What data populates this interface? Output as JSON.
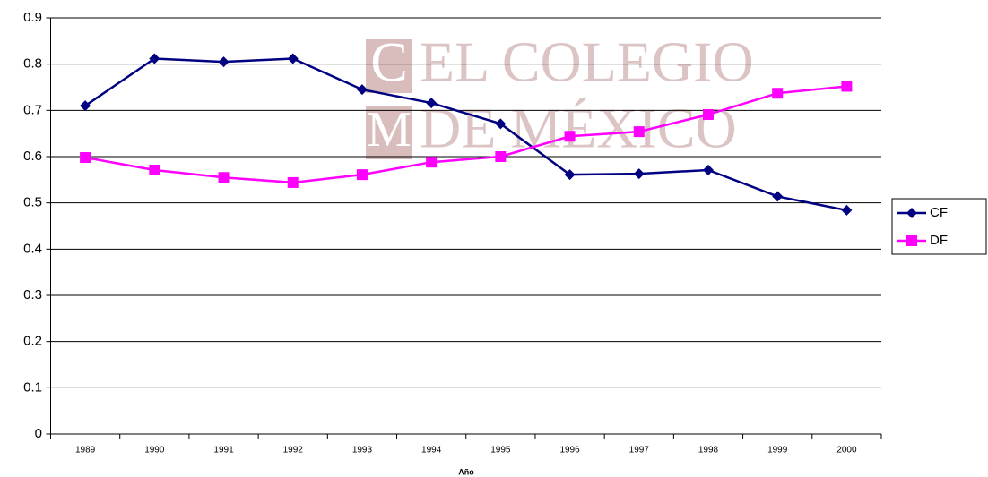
{
  "chart_data": {
    "type": "line",
    "watermark": [
      "C",
      "M",
      "EL COLEGIO",
      "DE MÉXICO"
    ],
    "xlabel": "Año",
    "categories": [
      "1989",
      "1990",
      "1991",
      "1992",
      "1993",
      "1994",
      "1995",
      "1996",
      "1997",
      "1998",
      "1999",
      "2000"
    ],
    "series": [
      {
        "name": "CF",
        "color": "#000080",
        "marker": "diamond",
        "values": [
          0.71,
          0.812,
          0.805,
          0.812,
          0.745,
          0.716,
          0.671,
          0.561,
          0.563,
          0.571,
          0.514,
          0.484
        ]
      },
      {
        "name": "DF",
        "color": "#ff00ff",
        "marker": "square",
        "values": [
          0.598,
          0.571,
          0.555,
          0.544,
          0.561,
          0.588,
          0.6,
          0.644,
          0.654,
          0.691,
          0.737,
          0.752
        ]
      }
    ],
    "ylim": [
      0,
      0.9
    ],
    "yticks": [
      0,
      0.1,
      0.2,
      0.3,
      0.4,
      0.5,
      0.6,
      0.7,
      0.8,
      0.9
    ],
    "grid": true,
    "legend": "right"
  }
}
